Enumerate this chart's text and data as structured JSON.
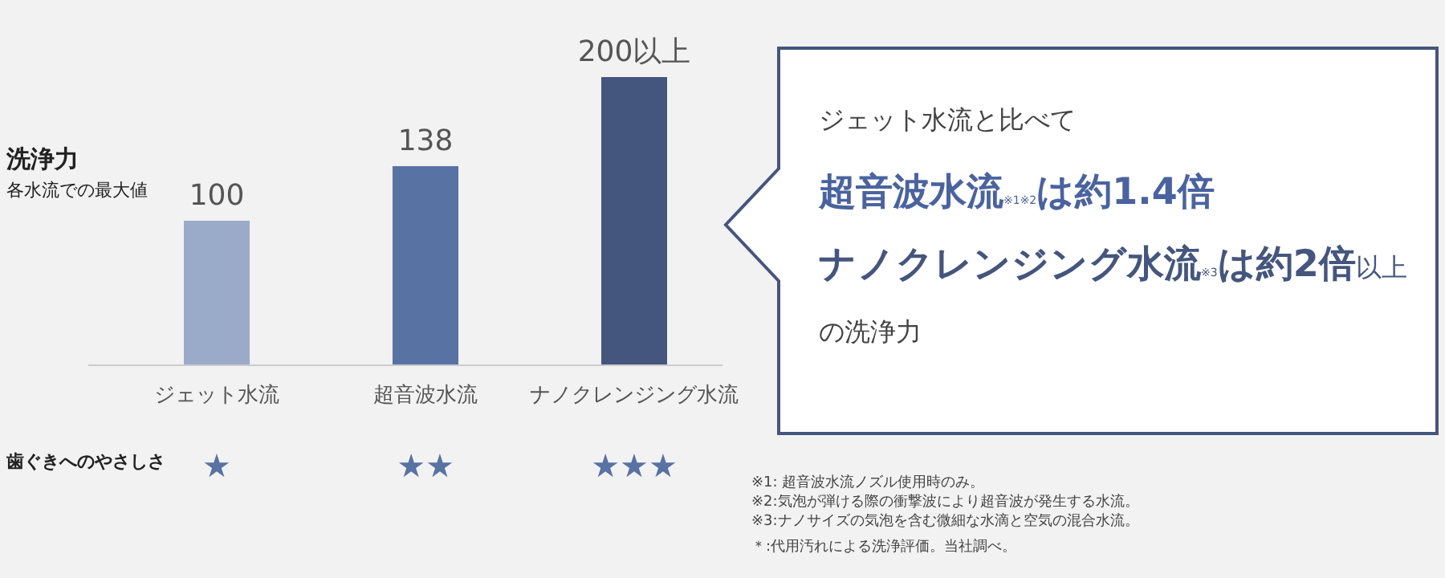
{
  "chart_data": {
    "type": "bar",
    "ylabel": "洗浄力",
    "categories": [
      "ジェット水流",
      "超音波水流",
      "ナノクレンジング水流"
    ],
    "values": [
      100,
      138,
      200
    ],
    "value_labels": [
      "100",
      "138",
      "200以上"
    ],
    "colors": [
      "#9aaac9",
      "#5872a4",
      "#44567e"
    ],
    "annotations": [
      "各水流での最大値",
      "歯ぐきへのやさしさ",
      "★",
      "★★",
      "★★★",
      "ジェット水流と比べて",
      "**超音波水流**$_{※1※2}$**は約1.4倍**",
      "**ナノクレンジング水流**$_{※3}$**は約2倍**以上",
      "の洗浄力",
      "※1: 超音波水流ノズル使用時のみ。",
      "※2:気泡が弾ける際の衝撃波により超音波が発生する水流。",
      "※3:ナノサイズの気泡を含む微細な水滴と空気の混合水流。",
      "＊:代用汚れによる洗浄評価。当社調べ。"
    ]
  }
}
